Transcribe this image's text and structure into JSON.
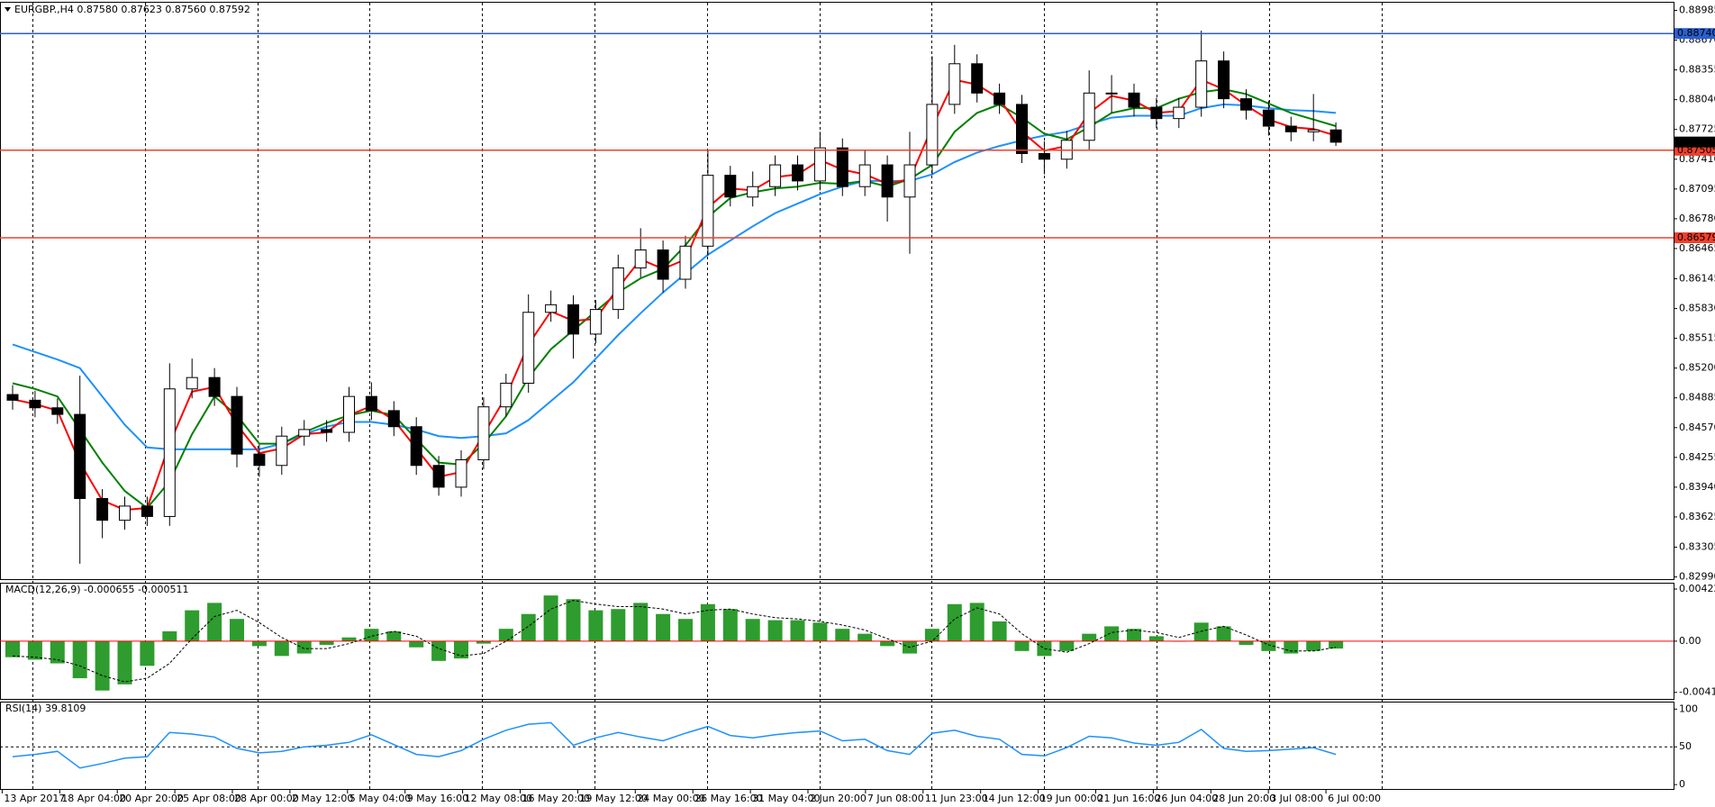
{
  "chart_data": [
    {
      "type": "candlestick",
      "title": "EURGBP.,H4 0.87580 0.87623 0.87560 0.87592",
      "time_labels": [
        "13 Apr 2017",
        "18 Apr 04:00",
        "20 Apr 20:00",
        "25 Apr 08:00",
        "28 Apr 00:00",
        "2 May 12:00",
        "5 May 04:00",
        "9 May 16:00",
        "12 May 08:00",
        "16 May 20:00",
        "19 May 12:00",
        "24 May 00:00",
        "26 May 16:00",
        "31 May 04:00",
        "2 Jun 20:00",
        "7 Jun 08:00",
        "11 Jun 23:00",
        "14 Jun 12:00",
        "19 Jun 00:00",
        "21 Jun 16:00",
        "26 Jun 04:00",
        "28 Jun 20:00",
        "3 Jul 08:00",
        "6 Jul 00:00"
      ],
      "open": [
        0.8492,
        0.8486,
        0.8478,
        0.8471,
        0.8382,
        0.8359,
        0.8374,
        0.8363,
        0.8498,
        0.851,
        0.849,
        0.8429,
        0.8417,
        0.8448,
        0.8455,
        0.8452,
        0.849,
        0.8475,
        0.8458,
        0.8417,
        0.8394,
        0.8423,
        0.8479,
        0.8504,
        0.8579,
        0.8587,
        0.8556,
        0.8582,
        0.8626,
        0.8645,
        0.8614,
        0.8649,
        0.8724,
        0.8701,
        0.8712,
        0.8735,
        0.8718,
        0.8753,
        0.8712,
        0.8735,
        0.8701,
        0.8735,
        0.8799,
        0.8842,
        0.8811,
        0.8799,
        0.8747,
        0.8741,
        0.8761,
        0.8811,
        0.8811,
        0.8796,
        0.8784,
        0.8796,
        0.8845,
        0.8805,
        0.8793,
        0.8776,
        0.877,
        0.8772
      ],
      "high": [
        0.8502,
        0.8496,
        0.8488,
        0.8512,
        0.8392,
        0.8384,
        0.8384,
        0.8525,
        0.853,
        0.852,
        0.85,
        0.8439,
        0.8458,
        0.8465,
        0.8465,
        0.85,
        0.8505,
        0.8485,
        0.8468,
        0.8427,
        0.8433,
        0.8489,
        0.8514,
        0.8598,
        0.8602,
        0.8597,
        0.8592,
        0.864,
        0.8668,
        0.8655,
        0.866,
        0.875,
        0.8734,
        0.8728,
        0.8745,
        0.8745,
        0.877,
        0.8763,
        0.875,
        0.8745,
        0.877,
        0.885,
        0.8862,
        0.8852,
        0.8821,
        0.8809,
        0.876,
        0.8771,
        0.8835,
        0.883,
        0.8821,
        0.8806,
        0.8806,
        0.8877,
        0.8855,
        0.8815,
        0.8803,
        0.8786,
        0.881,
        0.878
      ],
      "low": [
        0.8476,
        0.8468,
        0.8461,
        0.8313,
        0.834,
        0.8349,
        0.8353,
        0.8353,
        0.8488,
        0.848,
        0.8415,
        0.8405,
        0.8407,
        0.8438,
        0.8442,
        0.8442,
        0.8465,
        0.8448,
        0.8407,
        0.8385,
        0.8384,
        0.8413,
        0.8469,
        0.8494,
        0.8569,
        0.853,
        0.8546,
        0.8572,
        0.8616,
        0.86,
        0.8604,
        0.8639,
        0.8691,
        0.8691,
        0.8702,
        0.8708,
        0.8708,
        0.8702,
        0.8702,
        0.8675,
        0.8641,
        0.8725,
        0.8789,
        0.8801,
        0.8789,
        0.8737,
        0.8725,
        0.8731,
        0.8751,
        0.879,
        0.8786,
        0.8774,
        0.8774,
        0.8786,
        0.8795,
        0.8783,
        0.8766,
        0.876,
        0.876,
        0.8755
      ],
      "close": [
        0.8486,
        0.8478,
        0.8471,
        0.8382,
        0.8359,
        0.8374,
        0.8363,
        0.8498,
        0.851,
        0.849,
        0.8429,
        0.8417,
        0.8448,
        0.8455,
        0.8452,
        0.849,
        0.8475,
        0.8458,
        0.8417,
        0.8394,
        0.8423,
        0.8479,
        0.8504,
        0.8579,
        0.8587,
        0.8556,
        0.8582,
        0.8626,
        0.8645,
        0.8614,
        0.8649,
        0.8724,
        0.8701,
        0.8712,
        0.8735,
        0.8718,
        0.8753,
        0.8712,
        0.8735,
        0.8701,
        0.8735,
        0.8799,
        0.8842,
        0.8811,
        0.8799,
        0.8747,
        0.8741,
        0.8761,
        0.8811,
        0.8811,
        0.8796,
        0.8784,
        0.8796,
        0.8845,
        0.8805,
        0.8793,
        0.8776,
        0.877,
        0.8772,
        0.8759
      ],
      "up_color": "#ffffff",
      "down_color": "#000000",
      "wick_color": "#000000",
      "series": [
        {
          "color": "#1e90ff",
          "values": [
            0.8545,
            0.8537,
            0.8529,
            0.852,
            0.849,
            0.846,
            0.8436,
            0.8434,
            0.8434,
            0.8434,
            0.8434,
            0.8434,
            0.844,
            0.845,
            0.8458,
            0.8463,
            0.8463,
            0.846,
            0.8455,
            0.8448,
            0.8446,
            0.8448,
            0.8451,
            0.8465,
            0.8485,
            0.8505,
            0.853,
            0.8555,
            0.8578,
            0.86,
            0.862,
            0.864,
            0.8655,
            0.867,
            0.8684,
            0.8694,
            0.8704,
            0.8712,
            0.8718,
            0.8718,
            0.8718,
            0.8725,
            0.8738,
            0.8748,
            0.8755,
            0.8761,
            0.8766,
            0.877,
            0.8778,
            0.8785,
            0.8787,
            0.8787,
            0.8787,
            0.8795,
            0.8799,
            0.8798,
            0.8795,
            0.8793,
            0.8792,
            0.879
          ]
        },
        {
          "color": "#008000",
          "values": [
            0.8504,
            0.8498,
            0.849,
            0.8455,
            0.842,
            0.839,
            0.8372,
            0.84,
            0.845,
            0.849,
            0.847,
            0.844,
            0.844,
            0.8452,
            0.8462,
            0.847,
            0.8475,
            0.847,
            0.8445,
            0.842,
            0.8418,
            0.844,
            0.8469,
            0.851,
            0.854,
            0.856,
            0.858,
            0.86,
            0.8615,
            0.8625,
            0.865,
            0.868,
            0.87,
            0.8706,
            0.871,
            0.8712,
            0.8716,
            0.8715,
            0.8718,
            0.8712,
            0.872,
            0.8735,
            0.877,
            0.879,
            0.8799,
            0.8785,
            0.8768,
            0.8762,
            0.8775,
            0.879,
            0.8795,
            0.8795,
            0.8805,
            0.8812,
            0.8815,
            0.881,
            0.88,
            0.879,
            0.8783,
            0.8776
          ]
        },
        {
          "color": "#ff0000",
          "values": [
            0.8487,
            0.8482,
            0.8475,
            0.842,
            0.838,
            0.837,
            0.8372,
            0.844,
            0.8495,
            0.85,
            0.846,
            0.843,
            0.8435,
            0.845,
            0.8452,
            0.847,
            0.848,
            0.8465,
            0.8435,
            0.8405,
            0.841,
            0.845,
            0.849,
            0.8545,
            0.858,
            0.857,
            0.8572,
            0.8605,
            0.8635,
            0.8625,
            0.8635,
            0.869,
            0.871,
            0.8708,
            0.8722,
            0.8725,
            0.874,
            0.873,
            0.8725,
            0.8715,
            0.872,
            0.8775,
            0.8825,
            0.882,
            0.8805,
            0.877,
            0.875,
            0.8755,
            0.879,
            0.8808,
            0.8803,
            0.879,
            0.8792,
            0.8825,
            0.8815,
            0.8798,
            0.8783,
            0.8775,
            0.8773,
            0.8766
          ]
        }
      ],
      "hlines": [
        {
          "value": 0.8874,
          "label": "0.88740",
          "color": "#2a5fd0"
        },
        {
          "value": 0.87505,
          "label": "0.87505",
          "color": "#f0402c"
        },
        {
          "value": 0.86579,
          "label": "0.86579",
          "color": "#f0402c"
        }
      ],
      "last_price": 0.87592,
      "ylim": [
        0.82967,
        0.89066
      ],
      "yticks": [
        0.88985,
        {
          "value": 0.8867,
          "label": "0.88670"
        },
        0.88355,
        {
          "value": 0.8804,
          "label": "0.88040"
        },
        0.87725,
        {
          "value": 0.8741,
          "label": "0.87410"
        },
        0.87095,
        {
          "value": 0.8678,
          "label": "0.86780"
        },
        0.86465,
        0.86145,
        {
          "value": 0.8583,
          "label": "0.85830"
        },
        0.85515,
        {
          "value": 0.852,
          "label": "0.85200"
        },
        0.84885,
        {
          "value": 0.8457,
          "label": "0.84570"
        },
        0.84255,
        {
          "value": 0.8394,
          "label": "0.83940"
        },
        0.83625,
        0.83305,
        {
          "value": 0.8299,
          "label": "0.82990"
        }
      ]
    },
    {
      "type": "macd",
      "title": "MACD(12,26,9) -0.000655 -0.000511",
      "values": [
        -0.0013,
        -0.0015,
        -0.0018,
        -0.003,
        -0.004,
        -0.0035,
        -0.002,
        0.0008,
        0.0025,
        0.0031,
        0.0018,
        -0.0004,
        -0.0012,
        -0.001,
        -0.0003,
        0.0003,
        0.001,
        0.0008,
        -0.0005,
        -0.0016,
        -0.0014,
        -0.0002,
        0.001,
        0.0022,
        0.0037,
        0.0034,
        0.0025,
        0.0026,
        0.0031,
        0.0022,
        0.0018,
        0.003,
        0.0026,
        0.0018,
        0.0017,
        0.0017,
        0.0015,
        0.001,
        0.0006,
        -0.0004,
        -0.001,
        0.001,
        0.003,
        0.0031,
        0.0016,
        -0.0008,
        -0.0012,
        -0.0008,
        0.0006,
        0.0012,
        0.001,
        0.0004,
        0.0,
        0.0015,
        0.0012,
        -0.0003,
        -0.0008,
        -0.001,
        -0.0008,
        -0.0006
      ],
      "color": "#2e9c2e",
      "signal": [
        -0.0012,
        -0.0013,
        -0.0015,
        -0.002,
        -0.0028,
        -0.0033,
        -0.003,
        -0.0018,
        0.0002,
        0.002,
        0.0025,
        0.0015,
        0.0003,
        -0.0006,
        -0.0006,
        -0.0002,
        0.0004,
        0.0008,
        0.0004,
        -0.0006,
        -0.0012,
        -0.001,
        0.0,
        0.0012,
        0.0026,
        0.0033,
        0.003,
        0.0028,
        0.0028,
        0.0026,
        0.0022,
        0.0025,
        0.0026,
        0.0022,
        0.0019,
        0.0018,
        0.0016,
        0.0013,
        0.0009,
        0.0002,
        -0.0005,
        0.0,
        0.0018,
        0.0027,
        0.0022,
        0.0006,
        -0.0006,
        -0.0009,
        -0.0002,
        0.0007,
        0.0009,
        0.0007,
        0.0003,
        0.0008,
        0.0012,
        0.0005,
        -0.0003,
        -0.0008,
        -0.0008,
        -0.0005
      ],
      "signal_color": "#000000",
      "zero_line_color": "#ff0000",
      "ylim": [
        -0.00468,
        0.00466
      ],
      "yticks": [
        0.004223,
        {
          "value": 0,
          "label": "0.00"
        },
        -0.00415
      ]
    },
    {
      "type": "line",
      "title": "RSI(14) 39.8109",
      "values": [
        37,
        40,
        44,
        22,
        28,
        35,
        37,
        69,
        67,
        63,
        48,
        42,
        44,
        50,
        52,
        56,
        66,
        53,
        40,
        37,
        45,
        60,
        72,
        80,
        82,
        52,
        62,
        69,
        63,
        58,
        68,
        77,
        65,
        62,
        66,
        69,
        71,
        58,
        60,
        45,
        40,
        68,
        72,
        64,
        60,
        40,
        38,
        49,
        64,
        62,
        55,
        52,
        56,
        73,
        48,
        44,
        45,
        47,
        49,
        40
      ],
      "color": "#1e90ff",
      "levels": [
        50
      ],
      "ylim": [
        -5.8,
        108.7
      ],
      "yticks": [
        0,
        50,
        100
      ]
    }
  ]
}
